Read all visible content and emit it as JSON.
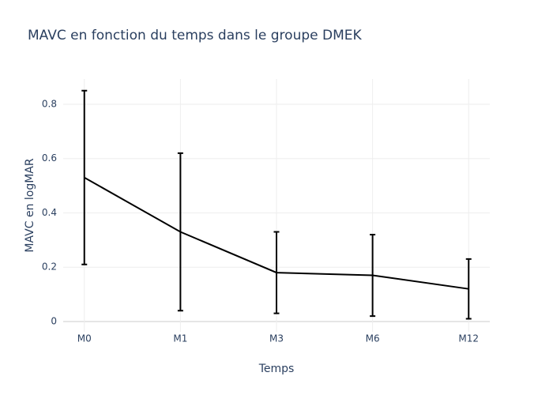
{
  "chart_data": {
    "type": "line",
    "title": "MAVC en fonction du temps dans le groupe DMEK",
    "x_label": "Temps",
    "y_label": "MAVC en logMAR",
    "categories": [
      "M0",
      "M1",
      "M3",
      "M6",
      "M12"
    ],
    "series": [
      {
        "color": "#000000",
        "values": [
          0.53,
          0.33,
          0.18,
          0.17,
          0.12
        ],
        "errors": [
          0.32,
          0.29,
          0.15,
          0.15,
          0.11
        ]
      }
    ],
    "ylim": [
      -0.038,
      0.893
    ],
    "yticks": [
      0,
      0.2,
      0.4,
      0.6,
      0.8
    ],
    "grid": true
  }
}
